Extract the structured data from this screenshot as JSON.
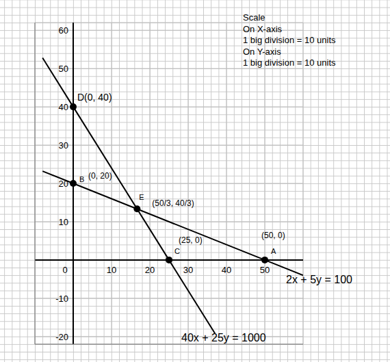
{
  "chart_data": {
    "type": "line",
    "xlim": [
      -10,
      60
    ],
    "xticks": [
      0,
      10,
      20,
      30,
      40,
      50
    ],
    "ylim": [
      -22,
      62
    ],
    "yticks": [
      -20,
      -10,
      10,
      20,
      30,
      40,
      50,
      60
    ],
    "grid": true,
    "series": [
      {
        "name": "40x + 25y = 1000",
        "color": "#000000",
        "x": [
          -8,
          0,
          25,
          37
        ],
        "values": [
          52.8,
          40,
          0,
          -19.2
        ]
      },
      {
        "name": "2x + 5y = 100",
        "color": "#000000",
        "x": [
          -8,
          0,
          50,
          60
        ],
        "values": [
          23.2,
          20,
          0,
          -4
        ]
      }
    ],
    "points": [
      {
        "label": "D(0, 40)",
        "x": 0,
        "y": 40
      },
      {
        "label": "B",
        "coords": "(0, 20)",
        "x": 0,
        "y": 20
      },
      {
        "label": "E",
        "coords": "(50/3, 40/3)",
        "x": 16.67,
        "y": 13.33
      },
      {
        "label": "C",
        "coords": "(25, 0)",
        "x": 25,
        "y": 0
      },
      {
        "label": "A",
        "coords": "(50, 0)",
        "x": 50,
        "y": 0
      }
    ],
    "annotations": [
      "Scale",
      "On X-axis",
      "1 big division = 10 units",
      "On Y-axis",
      "1 big division = 10 units"
    ]
  }
}
